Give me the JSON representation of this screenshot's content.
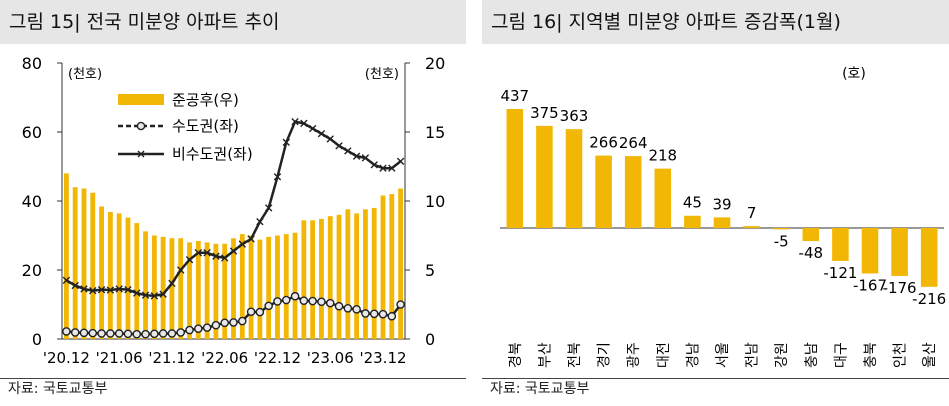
{
  "left": {
    "title": "그림 15| 전국 미분양 아파트 추이",
    "source": "자료: 국토교통부",
    "chart_data": {
      "type": "bar+line",
      "y_left_label": "(천호)",
      "y_right_label": "(천호)",
      "ylim_left": [
        0,
        80
      ],
      "ylim_right": [
        0,
        20
      ],
      "y_left_ticks": [
        "0",
        "20",
        "40",
        "60",
        "80"
      ],
      "y_right_ticks": [
        "0",
        "5",
        "10",
        "15",
        "20"
      ],
      "x_tick_labels": [
        "'20.12",
        "'21.06",
        "'21.12",
        "'22.06",
        "'22.12",
        "'23.06",
        "'23.12"
      ],
      "x_tick_index": [
        0,
        6,
        12,
        18,
        24,
        30,
        36
      ],
      "series": [
        {
          "name": "준공후(우)",
          "axis": "right",
          "kind": "bar",
          "values": [
            12.0,
            11.0,
            10.9,
            10.6,
            9.6,
            9.2,
            9.1,
            8.8,
            8.4,
            7.8,
            7.5,
            7.4,
            7.3,
            7.3,
            7.0,
            7.1,
            7.0,
            6.9,
            6.9,
            7.3,
            7.6,
            7.5,
            7.2,
            7.4,
            7.5,
            7.6,
            7.7,
            8.6,
            8.6,
            8.7,
            8.9,
            9.0,
            9.4,
            9.1,
            9.4,
            9.5,
            10.4,
            10.5,
            10.9
          ]
        },
        {
          "name": "수도권(좌)",
          "axis": "left",
          "kind": "line",
          "values": [
            2.2,
            1.9,
            1.8,
            1.7,
            1.6,
            1.6,
            1.6,
            1.5,
            1.4,
            1.4,
            1.5,
            1.6,
            1.6,
            1.9,
            2.6,
            3.0,
            3.3,
            4.0,
            4.7,
            4.8,
            5.2,
            7.9,
            7.8,
            9.6,
            10.9,
            11.3,
            12.4,
            11.1,
            11.0,
            10.8,
            10.4,
            9.5,
            8.9,
            8.6,
            7.4,
            7.3,
            7.2,
            6.6,
            10.0
          ]
        },
        {
          "name": "비수도권(좌)",
          "axis": "left",
          "kind": "line",
          "values": [
            17.0,
            15.5,
            14.5,
            14.0,
            14.3,
            14.2,
            14.5,
            14.3,
            13.3,
            12.7,
            12.5,
            13.0,
            16.1,
            20.0,
            23.0,
            25.0,
            25.0,
            24.0,
            23.5,
            25.5,
            27.5,
            29.0,
            34.0,
            38.0,
            47.0,
            57.0,
            63.0,
            62.5,
            61.0,
            59.5,
            58.0,
            56.0,
            54.5,
            53.0,
            52.5,
            50.5,
            49.5,
            49.5,
            51.5
          ]
        }
      ],
      "legend": "top-center",
      "colors": {
        "bar": "#f2b705",
        "line": "#222222",
        "axis": "#333333"
      }
    }
  },
  "right": {
    "title": "그림 16| 지역별 미분양 아파트 증감폭(1월)",
    "source": "자료: 국토교통부",
    "chart_data": {
      "type": "bar",
      "unit_label": "(호)",
      "categories": [
        "경북",
        "부산",
        "전북",
        "경기",
        "광주",
        "대전",
        "경남",
        "서울",
        "전남",
        "강원",
        "충남",
        "대구",
        "충북",
        "인천",
        "울산"
      ],
      "values": [
        437,
        375,
        363,
        266,
        264,
        218,
        45,
        39,
        7,
        -5,
        -48,
        -121,
        -167,
        -176,
        -216
      ],
      "value_labels": [
        "437",
        "375",
        "363",
        "266",
        "264",
        "218",
        "45",
        "39",
        "7",
        "-5",
        "-48",
        "-121",
        "-167",
        "-176",
        "-216"
      ],
      "colors": {
        "bar": "#f2b705"
      }
    }
  }
}
